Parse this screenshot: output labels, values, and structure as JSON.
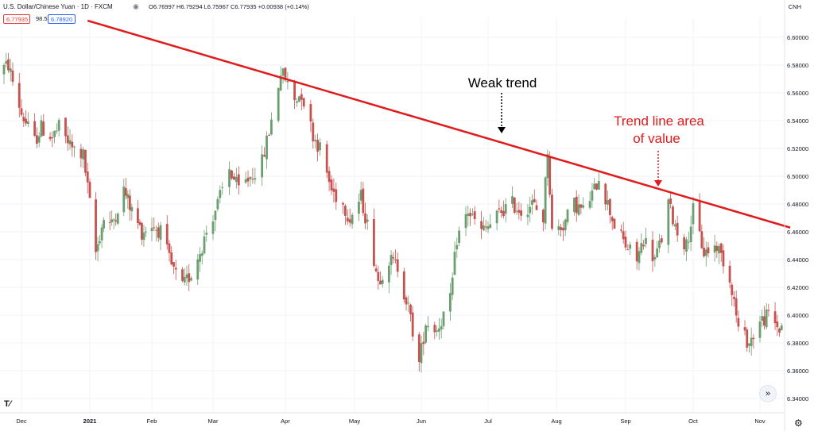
{
  "header": {
    "title": "U.S. Dollar/Chinese Yuan · 1D · FXCM",
    "ohlc": "O6.76997 H6.79294 L6.75967 C6.77935 +0.00938 (+0.14%)",
    "bid": "6.77935",
    "spread": "98.5",
    "ask": "6.78920",
    "currency": "CNH"
  },
  "chart_data": {
    "type": "candlestick",
    "symbol": "USDCNH",
    "interval": "1D",
    "ylim": [
      6.33,
      6.61
    ],
    "y_ticks": [
      "6.60000",
      "6.58000",
      "6.56000",
      "6.54000",
      "6.52000",
      "6.50000",
      "6.48000",
      "6.46000",
      "6.44000",
      "6.42000",
      "6.40000",
      "6.38000",
      "6.36000",
      "6.34000"
    ],
    "x_tick_labels": [
      "Dec",
      "2021",
      "Feb",
      "Mar",
      "Apr",
      "May",
      "Jun",
      "Jul",
      "Aug",
      "Sep",
      "Oct",
      "Nov"
    ],
    "series_close_path": [
      [
        "2020-11-20",
        6.575
      ],
      [
        "2020-11-25",
        6.58
      ],
      [
        "2020-12-01",
        6.545
      ],
      [
        "2020-12-07",
        6.525
      ],
      [
        "2020-12-10",
        6.535
      ],
      [
        "2020-12-15",
        6.528
      ],
      [
        "2020-12-18",
        6.535
      ],
      [
        "2020-12-24",
        6.52
      ],
      [
        "2020-12-29",
        6.515
      ],
      [
        "2021-01-04",
        6.445
      ],
      [
        "2021-01-08",
        6.47
      ],
      [
        "2021-01-12",
        6.465
      ],
      [
        "2021-01-18",
        6.49
      ],
      [
        "2021-01-22",
        6.475
      ],
      [
        "2021-01-27",
        6.46
      ],
      [
        "2021-02-01",
        6.465
      ],
      [
        "2021-02-05",
        6.46
      ],
      [
        "2021-02-10",
        6.435
      ],
      [
        "2021-02-15",
        6.42
      ],
      [
        "2021-02-19",
        6.43
      ],
      [
        "2021-02-24",
        6.45
      ],
      [
        "2021-02-26",
        6.46
      ],
      [
        "2021-03-03",
        6.48
      ],
      [
        "2021-03-08",
        6.505
      ],
      [
        "2021-03-12",
        6.49
      ],
      [
        "2021-03-17",
        6.5
      ],
      [
        "2021-03-22",
        6.51
      ],
      [
        "2021-03-26",
        6.54
      ],
      [
        "2021-03-30",
        6.575
      ],
      [
        "2021-04-01",
        6.57
      ],
      [
        "2021-04-05",
        6.555
      ],
      [
        "2021-04-08",
        6.56
      ],
      [
        "2021-04-13",
        6.53
      ],
      [
        "2021-04-16",
        6.52
      ],
      [
        "2021-04-21",
        6.49
      ],
      [
        "2021-04-26",
        6.48
      ],
      [
        "2021-04-29",
        6.47
      ],
      [
        "2021-05-04",
        6.485
      ],
      [
        "2021-05-07",
        6.465
      ],
      [
        "2021-05-12",
        6.425
      ],
      [
        "2021-05-17",
        6.44
      ],
      [
        "2021-05-21",
        6.435
      ],
      [
        "2021-05-26",
        6.405
      ],
      [
        "2021-05-31",
        6.365
      ],
      [
        "2021-06-03",
        6.395
      ],
      [
        "2021-06-08",
        6.39
      ],
      [
        "2021-06-14",
        6.41
      ],
      [
        "2021-06-17",
        6.455
      ],
      [
        "2021-06-22",
        6.475
      ],
      [
        "2021-06-28",
        6.46
      ],
      [
        "2021-07-02",
        6.465
      ],
      [
        "2021-07-07",
        6.475
      ],
      [
        "2021-07-12",
        6.48
      ],
      [
        "2021-07-16",
        6.475
      ],
      [
        "2021-07-21",
        6.48
      ],
      [
        "2021-07-26",
        6.47
      ],
      [
        "2021-07-28",
        6.52
      ],
      [
        "2021-07-30",
        6.46
      ],
      [
        "2021-08-04",
        6.465
      ],
      [
        "2021-08-09",
        6.48
      ],
      [
        "2021-08-13",
        6.475
      ],
      [
        "2021-08-18",
        6.49
      ],
      [
        "2021-08-20",
        6.5
      ],
      [
        "2021-08-24",
        6.48
      ],
      [
        "2021-08-27",
        6.465
      ],
      [
        "2021-09-01",
        6.45
      ],
      [
        "2021-09-06",
        6.44
      ],
      [
        "2021-09-09",
        6.455
      ],
      [
        "2021-09-14",
        6.44
      ],
      [
        "2021-09-17",
        6.455
      ],
      [
        "2021-09-20",
        6.48
      ],
      [
        "2021-09-24",
        6.46
      ],
      [
        "2021-09-28",
        6.45
      ],
      [
        "2021-10-01",
        6.475
      ],
      [
        "2021-10-06",
        6.445
      ],
      [
        "2021-10-12",
        6.45
      ],
      [
        "2021-10-15",
        6.44
      ],
      [
        "2021-10-19",
        6.42
      ],
      [
        "2021-10-22",
        6.39
      ],
      [
        "2021-10-27",
        6.38
      ],
      [
        "2021-11-01",
        6.395
      ],
      [
        "2021-11-05",
        6.4
      ],
      [
        "2021-11-10",
        6.39
      ],
      [
        "2021-11-12",
        6.395
      ]
    ],
    "trend_line": {
      "from": [
        "2020-12-31",
        6.612
      ],
      "to": [
        "2021-11-15",
        6.463
      ],
      "color": "#e01b1b"
    },
    "annotations": [
      {
        "text": "Weak trend",
        "color": "#000000"
      },
      {
        "text_lines": [
          "Trend line area",
          "of value"
        ],
        "color": "#e01b1b"
      }
    ],
    "up_color": "#6b9e6e",
    "down_color": "#c7514f"
  }
}
